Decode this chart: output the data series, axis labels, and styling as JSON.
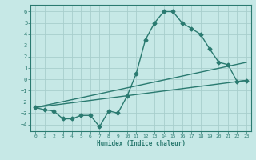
{
  "xlabel": "Humidex (Indice chaleur)",
  "bg_color": "#c6e8e6",
  "grid_color": "#a8cecc",
  "line_color": "#2a7a70",
  "xlim": [
    -0.5,
    23.5
  ],
  "ylim": [
    -4.6,
    6.6
  ],
  "xticks": [
    0,
    1,
    2,
    3,
    4,
    5,
    6,
    7,
    8,
    9,
    10,
    11,
    12,
    13,
    14,
    15,
    16,
    17,
    18,
    19,
    20,
    21,
    22,
    23
  ],
  "yticks": [
    -4,
    -3,
    -2,
    -1,
    0,
    1,
    2,
    3,
    4,
    5,
    6
  ],
  "line1_x": [
    0,
    1,
    2,
    3,
    4,
    5,
    6,
    7,
    8,
    9,
    10,
    11,
    12,
    13,
    14,
    15,
    16,
    17,
    18,
    19,
    20,
    21,
    22,
    23
  ],
  "line1_y": [
    -2.5,
    -2.7,
    -2.8,
    -3.5,
    -3.5,
    -3.2,
    -3.2,
    -4.2,
    -2.8,
    -3.0,
    -1.5,
    0.5,
    3.5,
    5.0,
    6.0,
    6.0,
    5.0,
    4.5,
    4.0,
    2.7,
    1.5,
    1.3,
    -0.2,
    -0.1
  ],
  "line3_x": [
    0,
    23
  ],
  "line3_y": [
    -2.5,
    -0.1
  ],
  "marker": "D",
  "marker_size": 2.5,
  "line_width": 1.0
}
